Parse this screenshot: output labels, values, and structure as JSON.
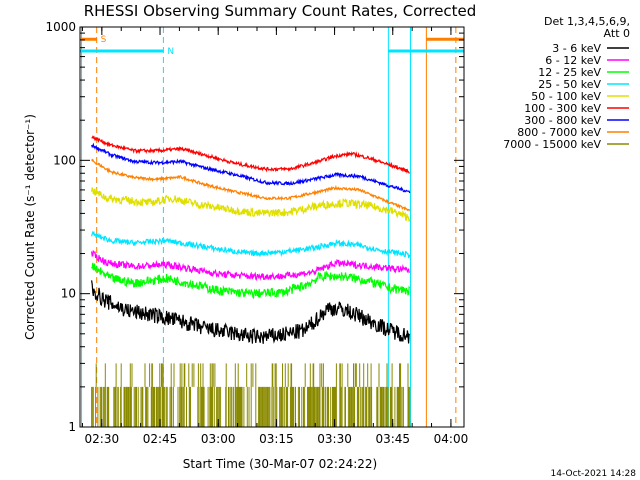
{
  "chart_data": {
    "type": "line",
    "title": "RHESSI Observing Summary Count Rates, Corrected",
    "xlabel": "Start Time (30-Mar-07 02:24:22)",
    "ylabel": "Corrected Count Rate (s⁻¹ detector⁻¹)",
    "y_scale": "log",
    "ylim": [
      1,
      1000
    ],
    "x_unit": "minutes after 02:24:22",
    "xlim": [
      0,
      99
    ],
    "x_ticks": [
      {
        "at": 5.63,
        "label": "02:30"
      },
      {
        "at": 20.63,
        "label": "02:45"
      },
      {
        "at": 35.63,
        "label": "03:00"
      },
      {
        "at": 50.63,
        "label": "03:15"
      },
      {
        "at": 65.63,
        "label": "03:30"
      },
      {
        "at": 80.63,
        "label": "03:45"
      },
      {
        "at": 95.63,
        "label": "04:00"
      }
    ],
    "y_ticks": [
      {
        "at": 1,
        "label": "1"
      },
      {
        "at": 10,
        "label": "10"
      },
      {
        "at": 100,
        "label": "100"
      },
      {
        "at": 1000,
        "label": "1000"
      }
    ],
    "legend": {
      "header": [
        "Det 1,3,4,5,6,9,",
        "Att 0"
      ],
      "position": "right"
    },
    "data_span": [
      3,
      85
    ],
    "series": [
      {
        "name": "3 - 6 keV",
        "color": "#000000",
        "noise": 0.06,
        "knots": [
          [
            3,
            11
          ],
          [
            6,
            9
          ],
          [
            12,
            7.5
          ],
          [
            20,
            6.8
          ],
          [
            26,
            6.2
          ],
          [
            32,
            5.5
          ],
          [
            40,
            5
          ],
          [
            46,
            4.7
          ],
          [
            52,
            4.9
          ],
          [
            58,
            5.3
          ],
          [
            60,
            6
          ],
          [
            64,
            7.8
          ],
          [
            68,
            7.6
          ],
          [
            72,
            6.8
          ],
          [
            76,
            6
          ],
          [
            80,
            5.3
          ],
          [
            85,
            4.8
          ]
        ]
      },
      {
        "name": "6 - 12 keV",
        "color": "#ff00ff",
        "noise": 0.025,
        "knots": [
          [
            3,
            20
          ],
          [
            7,
            17
          ],
          [
            14,
            16
          ],
          [
            22,
            16.5
          ],
          [
            28,
            15.5
          ],
          [
            36,
            14
          ],
          [
            44,
            13.5
          ],
          [
            52,
            13.5
          ],
          [
            60,
            14.5
          ],
          [
            66,
            17
          ],
          [
            70,
            16.5
          ],
          [
            76,
            16
          ],
          [
            80,
            15.5
          ],
          [
            85,
            15
          ]
        ]
      },
      {
        "name": "12 - 25 keV",
        "color": "#00ff00",
        "noise": 0.035,
        "knots": [
          [
            3,
            16
          ],
          [
            8,
            13
          ],
          [
            14,
            12
          ],
          [
            22,
            13
          ],
          [
            28,
            12
          ],
          [
            36,
            10.5
          ],
          [
            44,
            10
          ],
          [
            52,
            10.2
          ],
          [
            58,
            11.5
          ],
          [
            62,
            13.5
          ],
          [
            68,
            13.5
          ],
          [
            74,
            12.5
          ],
          [
            80,
            11
          ],
          [
            85,
            10.5
          ]
        ]
      },
      {
        "name": "25 - 50 keV",
        "color": "#00e5ff",
        "noise": 0.02,
        "knots": [
          [
            3,
            28
          ],
          [
            8,
            25
          ],
          [
            14,
            24
          ],
          [
            22,
            25
          ],
          [
            28,
            23.5
          ],
          [
            36,
            21.5
          ],
          [
            44,
            20
          ],
          [
            52,
            20.5
          ],
          [
            60,
            22
          ],
          [
            66,
            24
          ],
          [
            72,
            23
          ],
          [
            78,
            21
          ],
          [
            85,
            19.5
          ]
        ]
      },
      {
        "name": "50 - 100 keV",
        "color": "#e0e000",
        "noise": 0.03,
        "knots": [
          [
            3,
            60
          ],
          [
            7,
            52
          ],
          [
            12,
            50
          ],
          [
            18,
            48
          ],
          [
            24,
            52
          ],
          [
            30,
            47
          ],
          [
            38,
            43
          ],
          [
            46,
            40
          ],
          [
            54,
            41
          ],
          [
            62,
            46
          ],
          [
            68,
            48
          ],
          [
            74,
            46
          ],
          [
            80,
            42
          ],
          [
            85,
            37
          ]
        ]
      },
      {
        "name": "100 - 300 keV",
        "color": "#ff0000",
        "noise": 0.012,
        "knots": [
          [
            3,
            150
          ],
          [
            8,
            130
          ],
          [
            14,
            118
          ],
          [
            20,
            118
          ],
          [
            26,
            122
          ],
          [
            32,
            110
          ],
          [
            40,
            95
          ],
          [
            48,
            86
          ],
          [
            54,
            86
          ],
          [
            60,
            95
          ],
          [
            66,
            108
          ],
          [
            70,
            112
          ],
          [
            74,
            105
          ],
          [
            80,
            92
          ],
          [
            85,
            82
          ]
        ]
      },
      {
        "name": "300 - 800 keV",
        "color": "#0000ff",
        "noise": 0.012,
        "knots": [
          [
            3,
            130
          ],
          [
            8,
            110
          ],
          [
            14,
            98
          ],
          [
            20,
            96
          ],
          [
            26,
            98
          ],
          [
            32,
            88
          ],
          [
            40,
            78
          ],
          [
            48,
            68
          ],
          [
            54,
            67
          ],
          [
            60,
            72
          ],
          [
            66,
            78
          ],
          [
            72,
            76
          ],
          [
            80,
            64
          ],
          [
            85,
            58
          ]
        ]
      },
      {
        "name": "800 - 7000 keV",
        "color": "#ff8000",
        "noise": 0.01,
        "knots": [
          [
            3,
            100
          ],
          [
            8,
            82
          ],
          [
            14,
            74
          ],
          [
            20,
            72
          ],
          [
            26,
            75
          ],
          [
            32,
            66
          ],
          [
            40,
            58
          ],
          [
            48,
            52
          ],
          [
            54,
            52
          ],
          [
            60,
            57
          ],
          [
            66,
            62
          ],
          [
            72,
            60
          ],
          [
            80,
            48
          ],
          [
            85,
            42
          ]
        ]
      },
      {
        "name": "7000 - 15000 keV",
        "color": "#8a8a00",
        "noise": 0,
        "quantized": true,
        "knots": [
          [
            3,
            2
          ],
          [
            85,
            2
          ]
        ]
      }
    ],
    "flags": {
      "bars": [
        {
          "label": "S",
          "color": "#ff8000",
          "x0": 0.2,
          "x1": 4.3,
          "level": 810
        },
        {
          "label": "N",
          "color": "#00e5ff",
          "x0": 0,
          "x1": 21.5,
          "level": 660
        },
        {
          "color": "#ff8000",
          "x0": 89.3,
          "x1": 99,
          "level": 810
        },
        {
          "color": "#00e5ff",
          "x0": 79.5,
          "x1": 99,
          "level": 660
        }
      ],
      "vlines": [
        {
          "x": 0.4,
          "color": "#00e5ff",
          "style": "solid"
        },
        {
          "x": 4.3,
          "color": "#ff8000",
          "style": "dashed"
        },
        {
          "x": 21.5,
          "color": "#00e5ff",
          "style": "dashed"
        },
        {
          "x": 79.5,
          "color": "#00e5ff",
          "style": "solid"
        },
        {
          "x": 85.2,
          "color": "#00e5ff",
          "style": "solid"
        },
        {
          "x": 89.3,
          "color": "#ff8000",
          "style": "solid"
        },
        {
          "x": 96.9,
          "color": "#ff8000",
          "style": "dashed"
        }
      ]
    }
  },
  "timestamp": "14-Oct-2021 14:28"
}
